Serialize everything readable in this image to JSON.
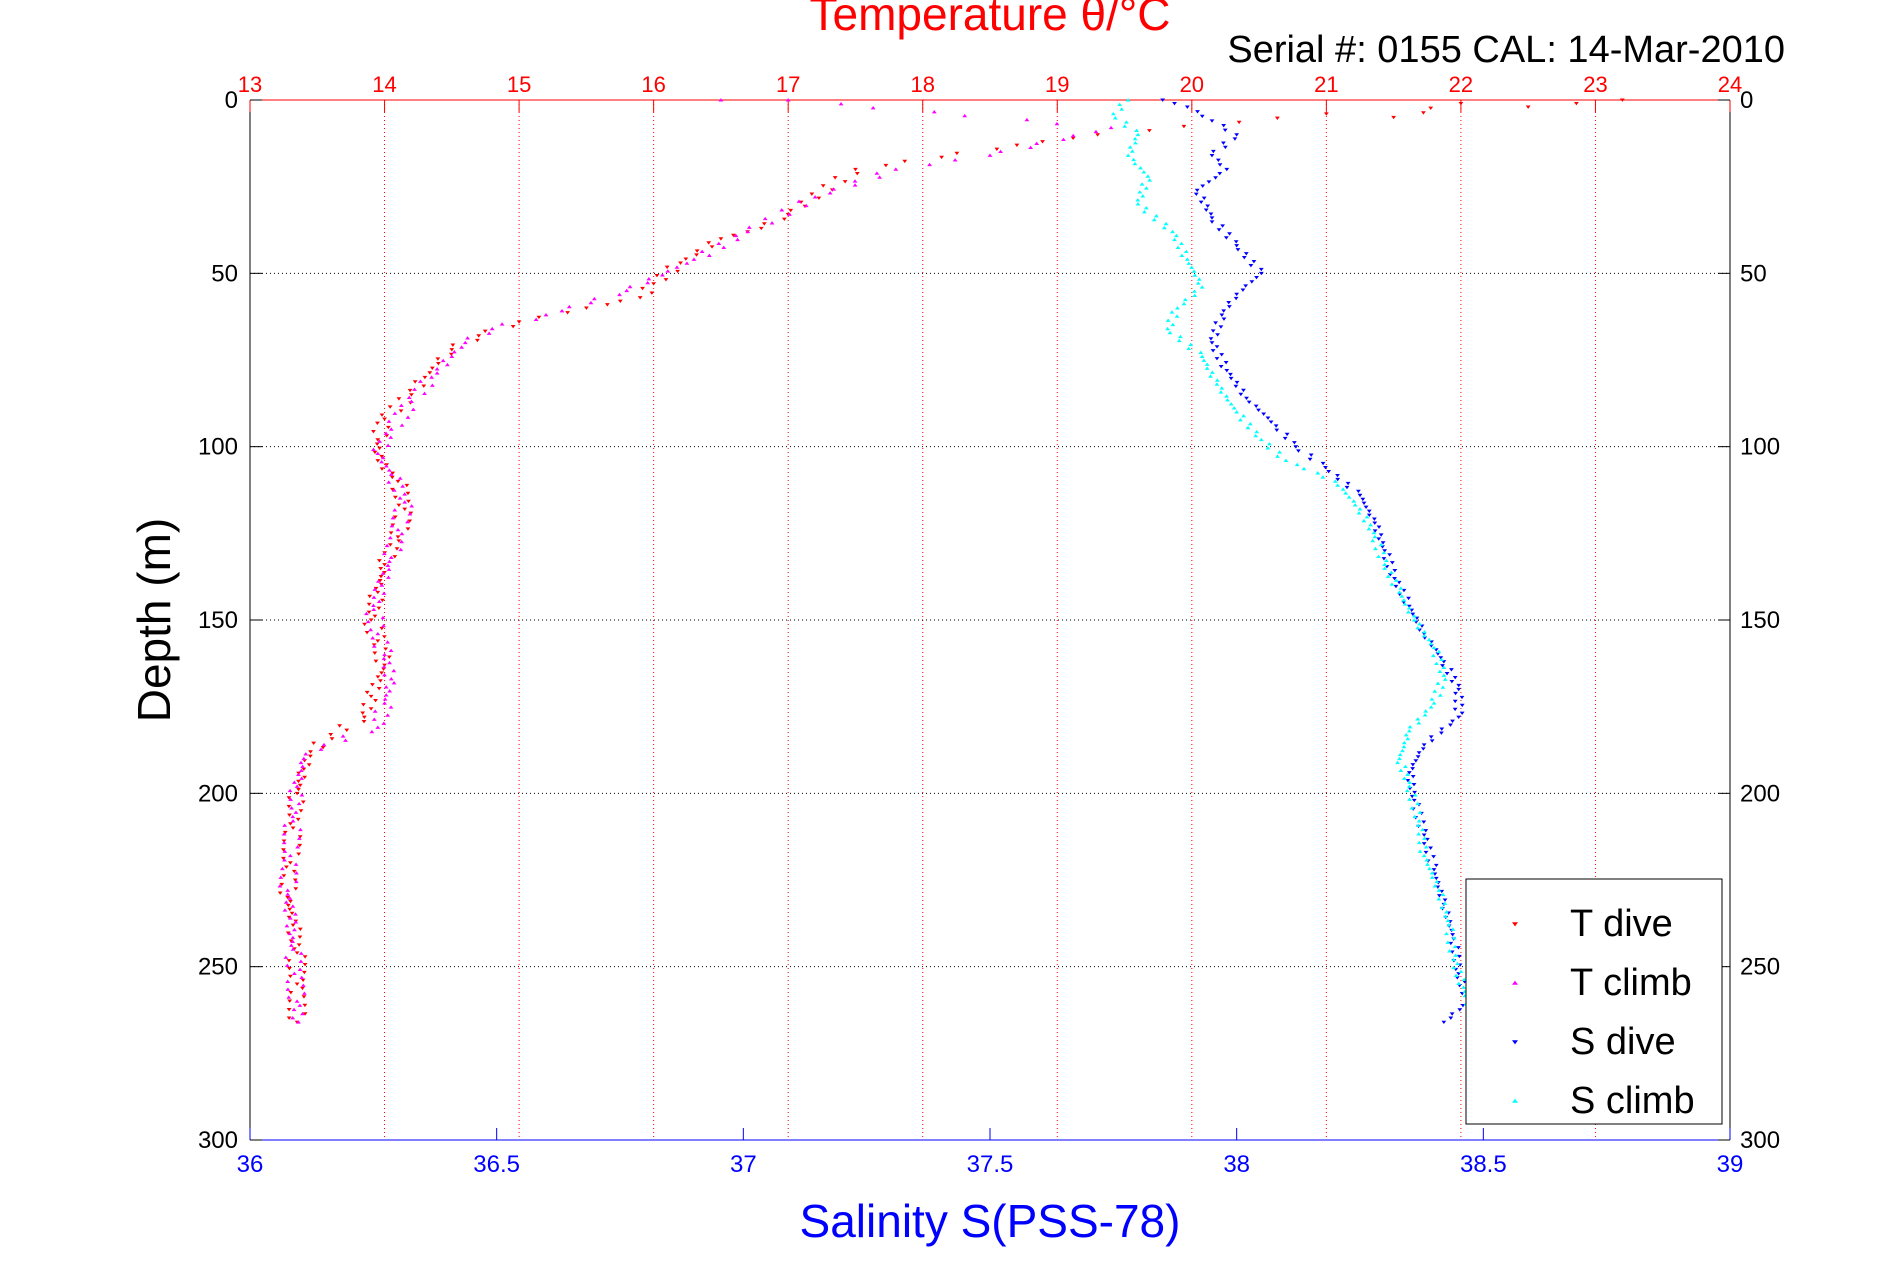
{
  "chart_data": {
    "type": "scatter",
    "title": "Temperature θ/°C",
    "subtitle": "Serial #: 0155  CAL: 14-Mar-2010",
    "xlabel": "Salinity S(PSS-78)",
    "ylabel": "Depth (m)",
    "x_bottom": {
      "label": "Salinity S(PSS-78)",
      "range": [
        36,
        39
      ],
      "ticks": [
        "36",
        "36.5",
        "37",
        "37.5",
        "38",
        "38.5",
        "39"
      ],
      "color": "#0000ff"
    },
    "x_top": {
      "label": "Temperature θ/°C",
      "range": [
        13,
        24
      ],
      "ticks": [
        "13",
        "14",
        "15",
        "16",
        "17",
        "18",
        "19",
        "20",
        "21",
        "22",
        "23",
        "24"
      ],
      "color": "#ff0000"
    },
    "y": {
      "label": "Depth (m)",
      "range": [
        0,
        300
      ],
      "reversed": true,
      "ticks": [
        "0",
        "50",
        "100",
        "150",
        "200",
        "250",
        "300"
      ]
    },
    "grid": {
      "vertical": "temperature",
      "horizontal": "depth"
    },
    "legend_placement": "bottom-right",
    "series": [
      {
        "name": "T dive",
        "axis": "temperature",
        "marker": "triangle-down",
        "color": "#ff0000",
        "points": [
          [
            23.2,
            0
          ],
          [
            22.5,
            2
          ],
          [
            22.0,
            1
          ],
          [
            21.5,
            5
          ],
          [
            21.0,
            4
          ],
          [
            19.3,
            10
          ],
          [
            18.7,
            13
          ],
          [
            17.5,
            20
          ],
          [
            17.0,
            33
          ],
          [
            16.8,
            37
          ],
          [
            16.5,
            40
          ],
          [
            16.2,
            47
          ],
          [
            16.0,
            53
          ],
          [
            15.9,
            57
          ],
          [
            15.5,
            60
          ],
          [
            15.0,
            64
          ],
          [
            14.7,
            68
          ],
          [
            14.5,
            72
          ],
          [
            14.4,
            76
          ],
          [
            14.3,
            80
          ],
          [
            14.2,
            85
          ],
          [
            14.0,
            92
          ],
          [
            13.95,
            98
          ],
          [
            13.95,
            104
          ],
          [
            14.1,
            110
          ],
          [
            14.15,
            118
          ],
          [
            14.1,
            126
          ],
          [
            14.0,
            134
          ],
          [
            13.95,
            142
          ],
          [
            13.9,
            150
          ],
          [
            13.95,
            156
          ],
          [
            14.0,
            163
          ],
          [
            13.9,
            172
          ],
          [
            13.85,
            178
          ],
          [
            13.6,
            183
          ],
          [
            13.45,
            188
          ],
          [
            13.4,
            193
          ],
          [
            13.35,
            200
          ],
          [
            13.32,
            210
          ],
          [
            13.3,
            220
          ],
          [
            13.28,
            230
          ],
          [
            13.32,
            238
          ],
          [
            13.35,
            246
          ],
          [
            13.35,
            255
          ],
          [
            13.35,
            266
          ]
        ]
      },
      {
        "name": "T climb",
        "axis": "temperature",
        "marker": "triangle-up",
        "color": "#ff00ff",
        "points": [
          [
            16.5,
            0
          ],
          [
            17.0,
            0
          ],
          [
            19.4,
            8
          ],
          [
            18.5,
            16
          ],
          [
            17.8,
            20
          ],
          [
            17.2,
            28
          ],
          [
            16.7,
            38
          ],
          [
            16.3,
            46
          ],
          [
            15.8,
            55
          ],
          [
            15.2,
            62
          ],
          [
            14.8,
            66
          ],
          [
            14.6,
            70
          ],
          [
            14.5,
            74
          ],
          [
            14.35,
            80
          ],
          [
            14.2,
            87
          ],
          [
            14.05,
            95
          ],
          [
            13.95,
            102
          ],
          [
            14.05,
            108
          ],
          [
            14.15,
            116
          ],
          [
            14.1,
            124
          ],
          [
            14.05,
            132
          ],
          [
            13.98,
            140
          ],
          [
            13.92,
            147
          ],
          [
            13.95,
            154
          ],
          [
            14.0,
            160
          ],
          [
            14.05,
            167
          ],
          [
            14.0,
            174
          ],
          [
            13.95,
            181
          ],
          [
            13.55,
            186
          ],
          [
            13.4,
            190
          ],
          [
            13.35,
            198
          ],
          [
            13.32,
            208
          ],
          [
            13.3,
            218
          ],
          [
            13.28,
            228
          ],
          [
            13.3,
            236
          ],
          [
            13.32,
            245
          ],
          [
            13.33,
            252
          ],
          [
            13.35,
            260
          ],
          [
            13.36,
            266
          ]
        ]
      },
      {
        "name": "S dive",
        "axis": "salinity",
        "marker": "triangle-down",
        "color": "#0000ff",
        "points": [
          [
            37.85,
            0
          ],
          [
            37.9,
            2
          ],
          [
            37.95,
            6
          ],
          [
            38.0,
            10
          ],
          [
            37.95,
            16
          ],
          [
            37.98,
            20
          ],
          [
            37.92,
            26
          ],
          [
            37.95,
            34
          ],
          [
            38.0,
            42
          ],
          [
            38.05,
            50
          ],
          [
            38.0,
            56
          ],
          [
            37.97,
            62
          ],
          [
            37.95,
            70
          ],
          [
            37.98,
            78
          ],
          [
            38.02,
            86
          ],
          [
            38.08,
            94
          ],
          [
            38.12,
            100
          ],
          [
            38.18,
            106
          ],
          [
            38.25,
            114
          ],
          [
            38.28,
            122
          ],
          [
            38.3,
            130
          ],
          [
            38.32,
            138
          ],
          [
            38.35,
            146
          ],
          [
            38.38,
            154
          ],
          [
            38.42,
            162
          ],
          [
            38.45,
            170
          ],
          [
            38.45,
            178
          ],
          [
            38.38,
            186
          ],
          [
            38.35,
            194
          ],
          [
            38.36,
            202
          ],
          [
            38.38,
            212
          ],
          [
            38.4,
            222
          ],
          [
            38.42,
            232
          ],
          [
            38.44,
            242
          ],
          [
            38.45,
            252
          ],
          [
            38.47,
            260
          ],
          [
            38.42,
            266
          ]
        ]
      },
      {
        "name": "S climb",
        "axis": "salinity",
        "marker": "triangle-up",
        "color": "#00ffff",
        "points": [
          [
            37.78,
            0
          ],
          [
            37.75,
            4
          ],
          [
            37.8,
            10
          ],
          [
            37.78,
            16
          ],
          [
            37.82,
            22
          ],
          [
            37.8,
            30
          ],
          [
            37.87,
            38
          ],
          [
            37.9,
            46
          ],
          [
            37.93,
            54
          ],
          [
            37.88,
            60
          ],
          [
            37.86,
            66
          ],
          [
            37.93,
            74
          ],
          [
            37.96,
            82
          ],
          [
            38.0,
            90
          ],
          [
            38.05,
            98
          ],
          [
            38.1,
            104
          ],
          [
            38.2,
            110
          ],
          [
            38.25,
            118
          ],
          [
            38.28,
            126
          ],
          [
            38.3,
            134
          ],
          [
            38.33,
            142
          ],
          [
            38.36,
            150
          ],
          [
            38.4,
            158
          ],
          [
            38.42,
            166
          ],
          [
            38.4,
            174
          ],
          [
            38.35,
            182
          ],
          [
            38.33,
            190
          ],
          [
            38.35,
            198
          ],
          [
            38.37,
            208
          ],
          [
            38.38,
            218
          ],
          [
            38.41,
            228
          ],
          [
            38.43,
            238
          ],
          [
            38.44,
            248
          ],
          [
            38.46,
            256
          ],
          [
            38.47,
            262
          ]
        ]
      }
    ]
  }
}
